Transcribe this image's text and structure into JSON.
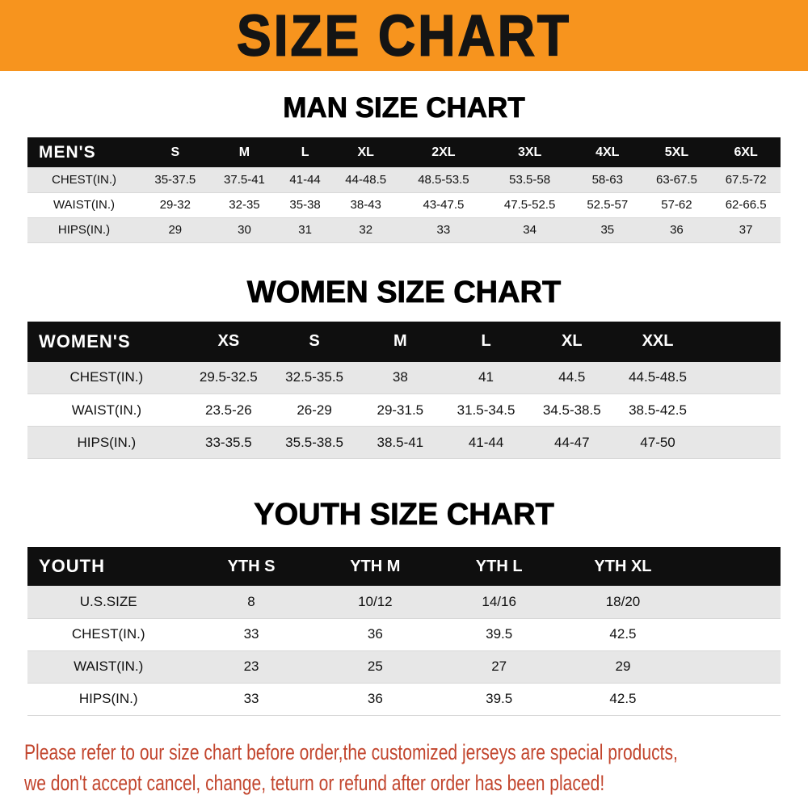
{
  "banner": {
    "title": "SIZE CHART",
    "bg_color": "#f7941e",
    "text_color": "#141414"
  },
  "man": {
    "heading": "MAN SIZE CHART",
    "label": "MEN'S",
    "columns": [
      "S",
      "M",
      "L",
      "XL",
      "2XL",
      "3XL",
      "4XL",
      "5XL",
      "6XL"
    ],
    "rows": [
      {
        "label": "CHEST(IN.)",
        "values": [
          "35-37.5",
          "37.5-41",
          "41-44",
          "44-48.5",
          "48.5-53.5",
          "53.5-58",
          "58-63",
          "63-67.5",
          "67.5-72"
        ]
      },
      {
        "label": "WAIST(IN.)",
        "values": [
          "29-32",
          "32-35",
          "35-38",
          "38-43",
          "43-47.5",
          "47.5-52.5",
          "52.5-57",
          "57-62",
          "62-66.5"
        ]
      },
      {
        "label": "HIPS(IN.)",
        "values": [
          "29",
          "30",
          "31",
          "32",
          "33",
          "34",
          "35",
          "36",
          "37"
        ]
      }
    ]
  },
  "women": {
    "heading": "WOMEN SIZE CHART",
    "label": "WOMEN'S",
    "columns": [
      "XS",
      "S",
      "M",
      "L",
      "XL",
      "XXL"
    ],
    "rows": [
      {
        "label": "CHEST(IN.)",
        "values": [
          "29.5-32.5",
          "32.5-35.5",
          "38",
          "41",
          "44.5",
          "44.5-48.5"
        ]
      },
      {
        "label": "WAIST(IN.)",
        "values": [
          "23.5-26",
          "26-29",
          "29-31.5",
          "31.5-34.5",
          "34.5-38.5",
          "38.5-42.5"
        ]
      },
      {
        "label": "HIPS(IN.)",
        "values": [
          "33-35.5",
          "35.5-38.5",
          "38.5-41",
          "41-44",
          "44-47",
          "47-50"
        ]
      }
    ]
  },
  "youth": {
    "heading": "YOUTH SIZE CHART",
    "label": "YOUTH",
    "columns": [
      "YTH S",
      "YTH M",
      "YTH L",
      "YTH XL"
    ],
    "rows": [
      {
        "label": "U.S.SIZE",
        "values": [
          "8",
          "10/12",
          "14/16",
          "18/20"
        ]
      },
      {
        "label": "CHEST(IN.)",
        "values": [
          "33",
          "36",
          "39.5",
          "42.5"
        ]
      },
      {
        "label": "WAIST(IN.)",
        "values": [
          "23",
          "25",
          "27",
          "29"
        ]
      },
      {
        "label": "HIPS(IN.)",
        "values": [
          "33",
          "36",
          "39.5",
          "42.5"
        ]
      }
    ]
  },
  "footer": {
    "line1": "Please refer to our size chart before order,the customized jerseys are special products,",
    "line2": "we don't accept cancel, change, teturn or refund after order has been placed!",
    "text_color": "#c2452d"
  }
}
